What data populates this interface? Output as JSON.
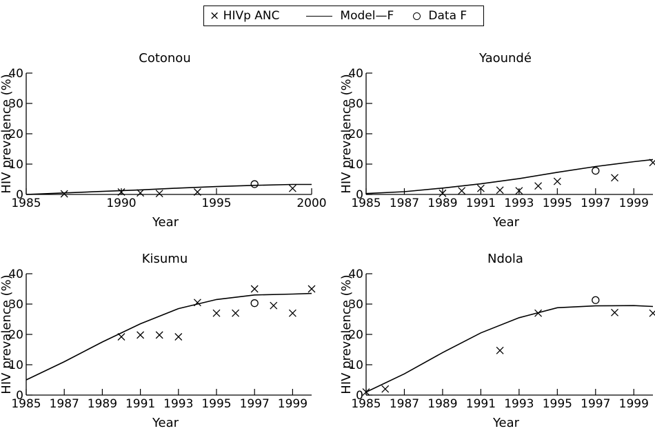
{
  "legend": {
    "items": [
      {
        "marker": "x",
        "label": "HIVp ANC"
      },
      {
        "marker": "line",
        "label": "Model—F"
      },
      {
        "marker": "circle",
        "label": "Data F"
      }
    ]
  },
  "chart_data": [
    {
      "type": "line",
      "title": "Cotonou",
      "xlabel": "Year",
      "ylabel": "HIV prevalence (%)",
      "xlim": [
        1985,
        2000
      ],
      "ylim": [
        0,
        40
      ],
      "xticks": [
        1985,
        1990,
        1995,
        2000
      ],
      "yticks": [
        0,
        10,
        20,
        30,
        40
      ],
      "series": [
        {
          "label_ref": "Model—F",
          "style": "line",
          "x": [
            1985,
            1987,
            1989,
            1991,
            1993,
            1995,
            1997,
            1999,
            2000
          ],
          "y": [
            0,
            0.5,
            1.0,
            1.5,
            2.1,
            2.6,
            3.0,
            3.3,
            3.3
          ]
        },
        {
          "label_ref": "HIVp ANC",
          "style": "x",
          "x": [
            1987,
            1990,
            1991,
            1992,
            1994,
            1999
          ],
          "y": [
            0.2,
            0.8,
            0.5,
            0.3,
            0.8,
            2.0
          ]
        },
        {
          "label_ref": "Data F",
          "style": "circle",
          "x": [
            1997
          ],
          "y": [
            3.4
          ]
        }
      ]
    },
    {
      "type": "line",
      "title": "Yaoundé",
      "xlabel": "Year",
      "ylabel": "HIV prevalence (%)",
      "xlim": [
        1985,
        2000
      ],
      "ylim": [
        0,
        40
      ],
      "xticks": [
        1985,
        1987,
        1989,
        1991,
        1993,
        1995,
        1997,
        1999
      ],
      "yticks": [
        0,
        10,
        20,
        30,
        40
      ],
      "series": [
        {
          "label_ref": "Model—F",
          "style": "line",
          "x": [
            1985,
            1987,
            1989,
            1991,
            1993,
            1995,
            1997,
            1999,
            2000
          ],
          "y": [
            0.3,
            0.9,
            2.1,
            3.5,
            5.2,
            7.3,
            9.2,
            10.8,
            11.5
          ]
        },
        {
          "label_ref": "HIVp ANC",
          "style": "x",
          "x": [
            1989,
            1990,
            1991,
            1992,
            1993,
            1994,
            1995,
            1998,
            2000
          ],
          "y": [
            0.4,
            1.2,
            2.0,
            1.4,
            1.2,
            2.8,
            4.3,
            5.5,
            10.5
          ]
        },
        {
          "label_ref": "Data F",
          "style": "circle",
          "x": [
            1997
          ],
          "y": [
            7.8
          ]
        }
      ]
    },
    {
      "type": "line",
      "title": "Kisumu",
      "xlabel": "Year",
      "ylabel": "HIV prevalence (%)",
      "xlim": [
        1985,
        2000
      ],
      "ylim": [
        0,
        40
      ],
      "xticks": [
        1985,
        1987,
        1989,
        1991,
        1993,
        1995,
        1997,
        1999
      ],
      "yticks": [
        0,
        10,
        20,
        30,
        40
      ],
      "series": [
        {
          "label_ref": "Model—F",
          "style": "line",
          "x": [
            1985,
            1987,
            1989,
            1991,
            1993,
            1995,
            1997,
            1999,
            2000
          ],
          "y": [
            5.0,
            11.0,
            17.5,
            23.5,
            28.5,
            31.5,
            33.0,
            33.3,
            33.5
          ]
        },
        {
          "label_ref": "HIVp ANC",
          "style": "x",
          "x": [
            1990,
            1991,
            1992,
            1993,
            1994,
            1995,
            1996,
            1997,
            1998,
            1999,
            2000
          ],
          "y": [
            19.2,
            19.8,
            19.8,
            19.2,
            30.5,
            27.0,
            27.0,
            35.0,
            29.5,
            27.0,
            35.0
          ]
        },
        {
          "label_ref": "Data F",
          "style": "circle",
          "x": [
            1997
          ],
          "y": [
            30.3
          ]
        }
      ]
    },
    {
      "type": "line",
      "title": "Ndola",
      "xlabel": "Year",
      "ylabel": "HIV prevalence (%)",
      "xlim": [
        1985,
        2000
      ],
      "ylim": [
        0,
        40
      ],
      "xticks": [
        1985,
        1987,
        1989,
        1991,
        1993,
        1995,
        1997,
        1999
      ],
      "yticks": [
        0,
        10,
        20,
        30,
        40
      ],
      "series": [
        {
          "label_ref": "Model—F",
          "style": "line",
          "x": [
            1985,
            1987,
            1989,
            1991,
            1993,
            1995,
            1997,
            1999,
            2000
          ],
          "y": [
            1.0,
            7.0,
            14.0,
            20.5,
            25.5,
            28.8,
            29.4,
            29.5,
            29.2
          ]
        },
        {
          "label_ref": "HIVp ANC",
          "style": "x",
          "x": [
            1985,
            1986,
            1992,
            1994,
            1998,
            2000
          ],
          "y": [
            1.0,
            2.0,
            14.7,
            27.0,
            27.2,
            27.0
          ]
        },
        {
          "label_ref": "Data F",
          "style": "circle",
          "x": [
            1997
          ],
          "y": [
            31.3
          ]
        }
      ]
    }
  ]
}
